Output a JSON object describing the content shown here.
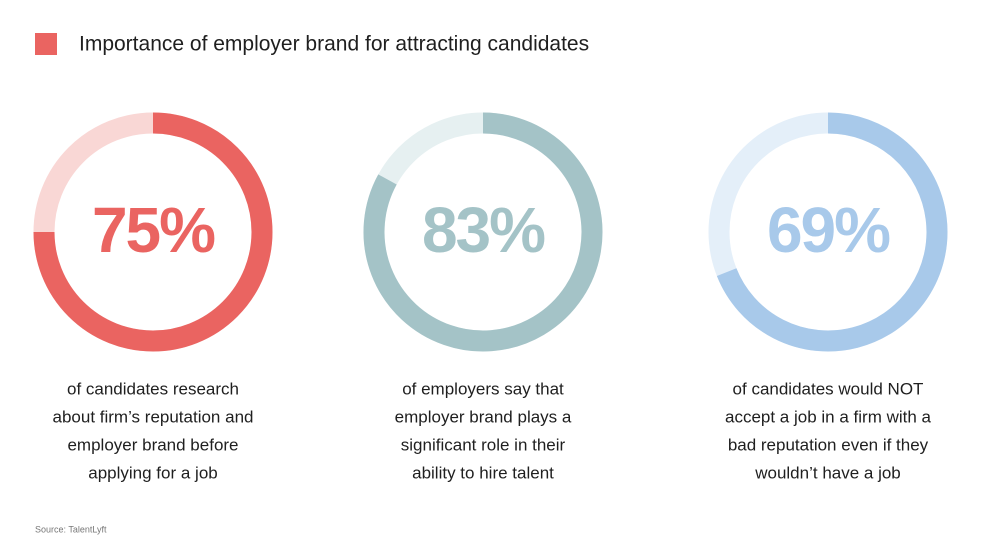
{
  "title": "Importance of employer brand for attracting candidates",
  "source": "Source: TalentLyft",
  "chart_data": [
    {
      "type": "donut",
      "values": [
        75
      ],
      "value_labels": [
        "75%"
      ],
      "color": "#ea6461",
      "track_color": "#f9d7d5",
      "caption": [
        "of candidates research",
        "about firm’s reputation and",
        "employer brand before",
        "applying for a job"
      ]
    },
    {
      "type": "donut",
      "values": [
        83
      ],
      "value_labels": [
        "83%"
      ],
      "color": "#a4c3c7",
      "track_color": "#e6f0f1",
      "caption": [
        "of employers say that",
        "employer brand plays a",
        "significant role in their",
        "ability to hire talent"
      ]
    },
    {
      "type": "donut",
      "values": [
        69
      ],
      "value_labels": [
        "69%"
      ],
      "color": "#a8c9ea",
      "track_color": "#e4eff9",
      "caption": [
        "of candidates would NOT",
        "accept a job in a firm with a",
        "bad reputation even if they",
        "wouldn’t have a job"
      ]
    }
  ]
}
